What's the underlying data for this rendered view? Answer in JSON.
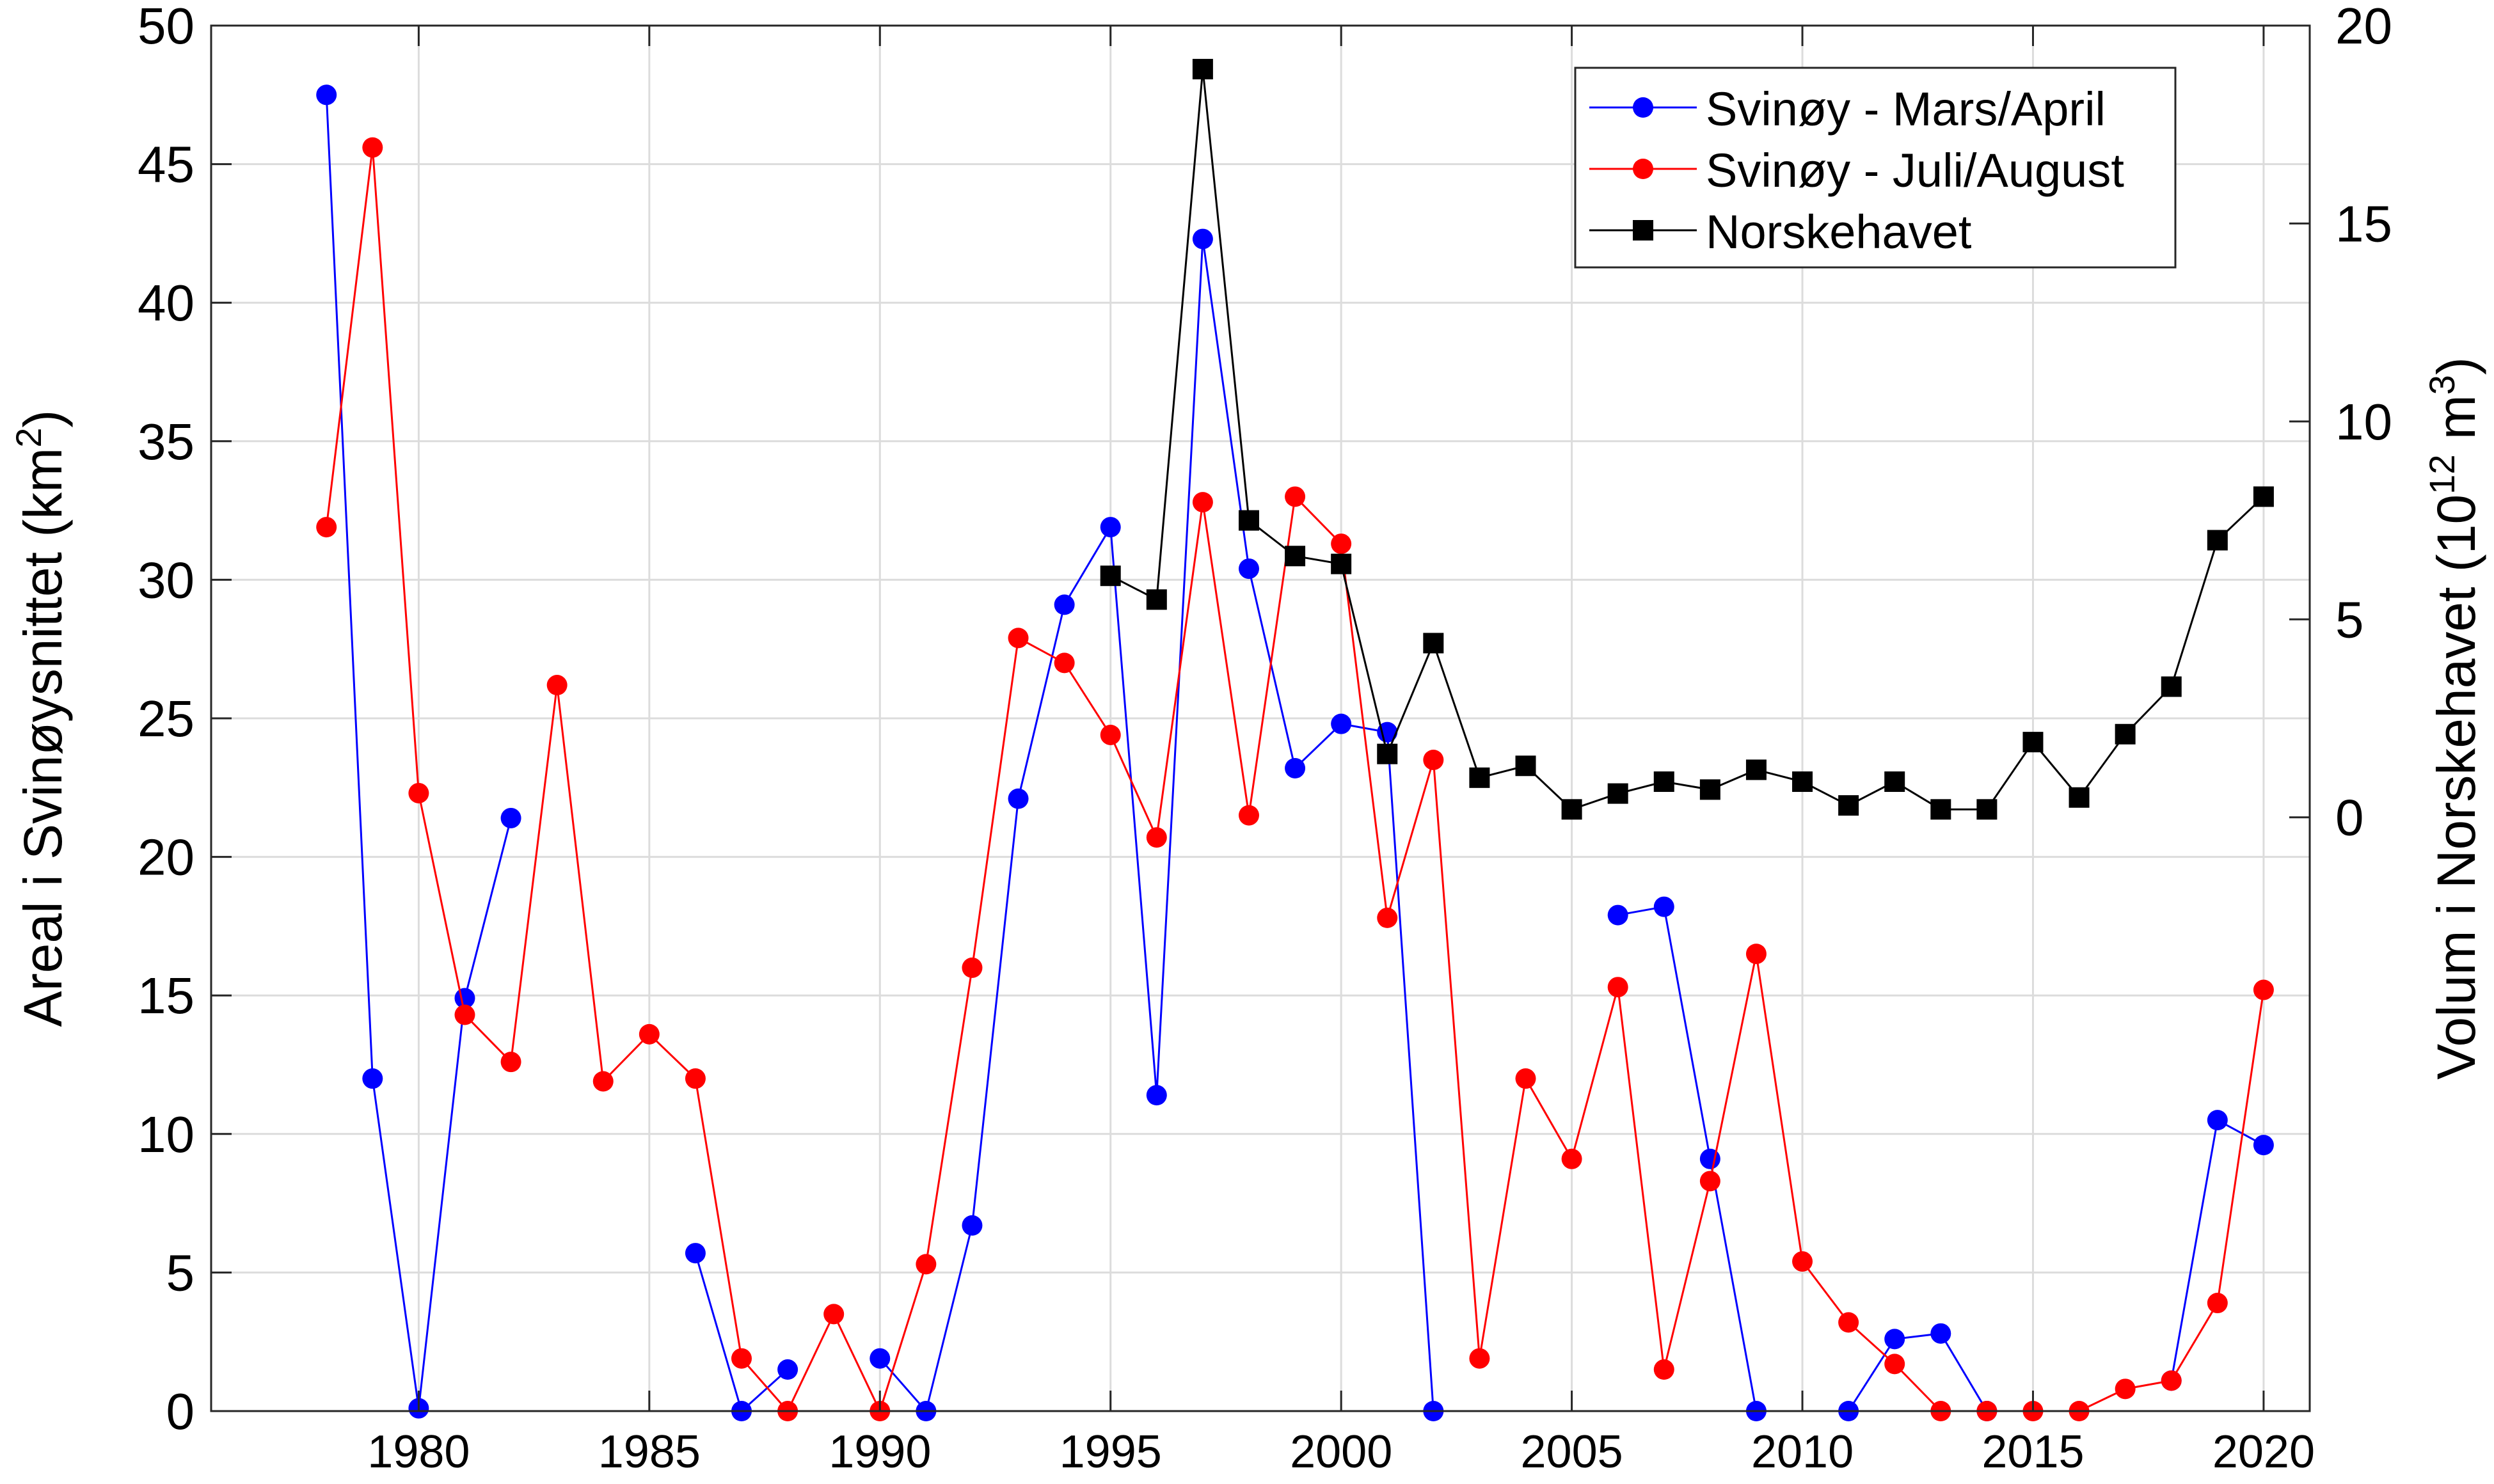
{
  "chart_data": {
    "type": "line",
    "ylabel_left": "Areal i Svinøysnittet (km",
    "ylabel_left_sup": "2",
    "ylabel_left_end": ")",
    "ylabel_right": "Volum i Norskehavet (10",
    "ylabel_right_sup": "12",
    "ylabel_right_mid": " m",
    "ylabel_right_sup2": "3",
    "ylabel_right_end": ")",
    "xlim": [
      1975.5,
      2021
    ],
    "ylim_left": [
      0,
      50
    ],
    "ylim_right": [
      -15,
      20
    ],
    "x_ticks": [
      1980,
      1985,
      1990,
      1995,
      2000,
      2005,
      2010,
      2015,
      2020
    ],
    "y_ticks_left": [
      0,
      5,
      10,
      15,
      20,
      25,
      30,
      35,
      40,
      45,
      50
    ],
    "y_ticks_right": [
      0,
      5,
      10,
      15,
      20
    ],
    "grid": true,
    "legend_position": "top-right",
    "colors": {
      "blue": "#0000ff",
      "red": "#ff0000",
      "black": "#000000"
    },
    "series": [
      {
        "name": "Svinøy - Mars/April",
        "axis": "left",
        "color": "#0000ff",
        "marker": "circle",
        "segments": [
          [
            [
              1978,
              47.5
            ],
            [
              1979,
              12.0
            ],
            [
              1980,
              0.1
            ],
            [
              1981,
              14.9
            ],
            [
              1982,
              21.4
            ]
          ],
          [
            [
              1986,
              5.7
            ],
            [
              1987,
              0.0
            ],
            [
              1988,
              1.5
            ]
          ],
          [
            [
              1990,
              1.9
            ],
            [
              1991,
              0.0
            ],
            [
              1992,
              6.7
            ],
            [
              1993,
              22.1
            ],
            [
              1994,
              29.1
            ],
            [
              1995,
              31.9
            ],
            [
              1996,
              11.4
            ],
            [
              1997,
              42.3
            ],
            [
              1998,
              30.4
            ],
            [
              1999,
              23.2
            ],
            [
              2000,
              24.8
            ],
            [
              2001,
              24.5
            ],
            [
              2002,
              0.0
            ]
          ],
          [
            [
              2006,
              17.9
            ],
            [
              2007,
              18.2
            ],
            [
              2008,
              9.1
            ],
            [
              2009,
              0.0
            ]
          ],
          [
            [
              2011,
              0.0
            ],
            [
              2012,
              2.6
            ],
            [
              2013,
              2.8
            ],
            [
              2014,
              0.0
            ]
          ],
          [
            [
              2018,
              1.1
            ],
            [
              2019,
              10.5
            ],
            [
              2020,
              9.6
            ]
          ]
        ]
      },
      {
        "name": "Svinøy - Juli/August",
        "axis": "left",
        "color": "#ff0000",
        "marker": "circle",
        "segments": [
          [
            [
              1978,
              31.9
            ],
            [
              1979,
              45.6
            ],
            [
              1980,
              22.3
            ],
            [
              1981,
              14.3
            ],
            [
              1982,
              12.6
            ],
            [
              1983,
              26.2
            ],
            [
              1984,
              11.9
            ],
            [
              1985,
              13.6
            ],
            [
              1986,
              12.0
            ],
            [
              1987,
              1.9
            ],
            [
              1988,
              0.0
            ],
            [
              1989,
              3.5
            ],
            [
              1990,
              0.0
            ],
            [
              1991,
              5.3
            ],
            [
              1992,
              16.0
            ],
            [
              1993,
              27.9
            ],
            [
              1994,
              27.0
            ],
            [
              1995,
              24.4
            ],
            [
              1996,
              20.7
            ],
            [
              1997,
              32.8
            ],
            [
              1998,
              21.5
            ],
            [
              1999,
              33.0
            ],
            [
              2000,
              31.3
            ],
            [
              2001,
              17.8
            ],
            [
              2002,
              23.5
            ],
            [
              2003,
              1.9
            ],
            [
              2004,
              12.0
            ],
            [
              2005,
              9.1
            ],
            [
              2006,
              15.3
            ],
            [
              2007,
              1.5
            ],
            [
              2008,
              8.3
            ],
            [
              2009,
              16.5
            ],
            [
              2010,
              5.4
            ],
            [
              2011,
              3.2
            ],
            [
              2012,
              1.7
            ],
            [
              2013,
              0.0
            ],
            [
              2014,
              0.0
            ],
            [
              2015,
              0.0
            ],
            [
              2016,
              0.0
            ],
            [
              2017,
              0.8
            ],
            [
              2018,
              1.1
            ],
            [
              2019,
              3.9
            ],
            [
              2020,
              15.2
            ]
          ]
        ]
      },
      {
        "name": "Norskehavet",
        "axis": "right",
        "color": "#000000",
        "marker": "square",
        "segments": [
          [
            [
              1995,
              6.1
            ],
            [
              1996,
              5.5
            ],
            [
              1997,
              18.9
            ],
            [
              1998,
              7.5
            ],
            [
              1999,
              6.6
            ],
            [
              2000,
              6.4
            ],
            [
              2001,
              1.6
            ],
            [
              2002,
              4.4
            ],
            [
              2003,
              1.0
            ],
            [
              2004,
              1.3
            ],
            [
              2005,
              0.2
            ],
            [
              2006,
              0.6
            ],
            [
              2007,
              0.9
            ],
            [
              2008,
              0.7
            ],
            [
              2009,
              1.2
            ],
            [
              2010,
              0.9
            ],
            [
              2011,
              0.3
            ],
            [
              2012,
              0.9
            ],
            [
              2013,
              0.2
            ],
            [
              2014,
              0.2
            ],
            [
              2015,
              1.9
            ],
            [
              2016,
              0.5
            ],
            [
              2017,
              2.1
            ],
            [
              2018,
              3.3
            ],
            [
              2019,
              7.0
            ],
            [
              2020,
              8.1
            ]
          ]
        ]
      }
    ]
  }
}
